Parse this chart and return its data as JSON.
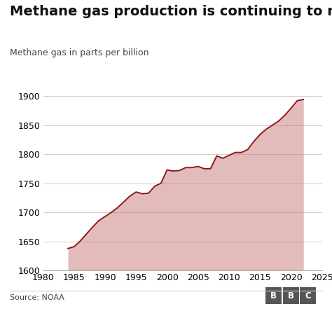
{
  "title": "Methane gas production is continuing to rise",
  "ylabel": "Methane gas in parts per billion",
  "source": "Source: NOAA",
  "bbc_label": "BBC",
  "xlim": [
    1980,
    2025
  ],
  "ylim": [
    1600,
    1910
  ],
  "yticks": [
    1600,
    1650,
    1700,
    1750,
    1800,
    1850,
    1900
  ],
  "xticks": [
    1980,
    1985,
    1990,
    1995,
    2000,
    2005,
    2010,
    2015,
    2020,
    2025
  ],
  "line_color": "#8B1A1A",
  "fill_color": "#C87878",
  "fill_alpha": 0.5,
  "background_color": "#ffffff",
  "years": [
    1984,
    1985,
    1986,
    1987,
    1988,
    1989,
    1990,
    1991,
    1992,
    1993,
    1994,
    1995,
    1996,
    1997,
    1998,
    1999,
    2000,
    2001,
    2002,
    2003,
    2004,
    2005,
    2006,
    2007,
    2008,
    2009,
    2010,
    2011,
    2012,
    2013,
    2014,
    2015,
    2016,
    2017,
    2018,
    2019,
    2020,
    2021,
    2022
  ],
  "values": [
    1638,
    1641,
    1651,
    1663,
    1675,
    1686,
    1693,
    1700,
    1708,
    1718,
    1728,
    1735,
    1732,
    1733,
    1745,
    1750,
    1773,
    1771,
    1772,
    1777,
    1777,
    1779,
    1775,
    1775,
    1797,
    1793,
    1798,
    1803,
    1803,
    1808,
    1822,
    1834,
    1843,
    1850,
    1857,
    1867,
    1879,
    1892,
    1894
  ],
  "title_fontsize": 14,
  "label_fontsize": 9,
  "tick_fontsize": 9,
  "source_fontsize": 8,
  "bbc_color": "#555555"
}
